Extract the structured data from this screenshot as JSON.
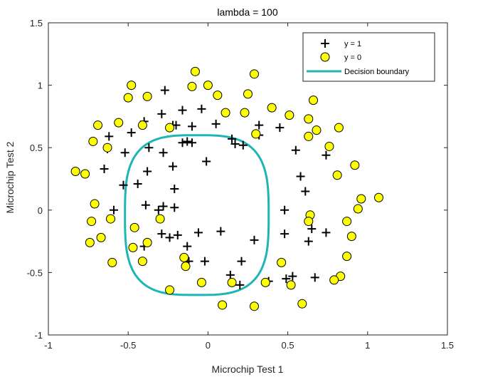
{
  "chart_data": {
    "type": "scatter",
    "title": "lambda = 100",
    "xlabel": "Microchip Test 1",
    "ylabel": "Microchip Test 2",
    "xlim": [
      -1,
      1.5
    ],
    "ylim": [
      -1,
      1.5
    ],
    "xticks": [
      -1,
      -0.5,
      0,
      0.5,
      1,
      1.5
    ],
    "xtick_labels": [
      "-1",
      "-0.5",
      "0",
      "0.5",
      "1",
      "1.5"
    ],
    "yticks": [
      -1,
      -0.5,
      0,
      0.5,
      1,
      1.5
    ],
    "ytick_labels": [
      "-1",
      "-0.5",
      "0",
      "0.5",
      "1",
      "1.5"
    ],
    "grid": false,
    "legend_position": "top-right",
    "series": [
      {
        "name": "y = 1",
        "marker": "plus",
        "color": "#000000",
        "points": [
          [
            -0.27,
            0.96
          ],
          [
            -0.29,
            0.77
          ],
          [
            -0.16,
            0.8
          ],
          [
            -0.04,
            0.81
          ],
          [
            -0.2,
            0.68
          ],
          [
            -0.1,
            0.67
          ],
          [
            -0.4,
            0.71
          ],
          [
            -0.48,
            0.62
          ],
          [
            -0.62,
            0.59
          ],
          [
            -0.52,
            0.46
          ],
          [
            -0.37,
            0.5
          ],
          [
            -0.28,
            0.46
          ],
          [
            -0.22,
            0.35
          ],
          [
            -0.38,
            0.31
          ],
          [
            -0.63,
            0.49
          ],
          [
            -0.65,
            0.33
          ],
          [
            -0.53,
            0.2
          ],
          [
            -0.44,
            0.21
          ],
          [
            -0.21,
            0.17
          ],
          [
            -0.01,
            0.39
          ],
          [
            0.05,
            0.69
          ],
          [
            0.15,
            0.57
          ],
          [
            0.22,
            0.52
          ],
          [
            0.17,
            0.53
          ],
          [
            0.32,
            0.68
          ],
          [
            0.32,
            0.6
          ],
          [
            0.45,
            0.66
          ],
          [
            0.55,
            0.48
          ],
          [
            0.58,
            0.27
          ],
          [
            0.61,
            0.15
          ],
          [
            0.74,
            0.44
          ],
          [
            0.48,
            0.0
          ],
          [
            0.48,
            -0.19
          ],
          [
            0.63,
            -0.25
          ],
          [
            0.65,
            -0.15
          ],
          [
            0.74,
            -0.18
          ],
          [
            0.67,
            -0.54
          ],
          [
            0.53,
            -0.53
          ],
          [
            0.49,
            -0.55
          ],
          [
            0.38,
            -0.57
          ],
          [
            0.29,
            -0.24
          ],
          [
            0.21,
            -0.41
          ],
          [
            0.08,
            -0.17
          ],
          [
            0.14,
            -0.52
          ],
          [
            0.2,
            -0.6
          ],
          [
            -0.06,
            -0.18
          ],
          [
            -0.02,
            -0.41
          ],
          [
            -0.12,
            -0.41
          ],
          [
            -0.13,
            -0.29
          ],
          [
            -0.19,
            -0.2
          ],
          [
            -0.24,
            -0.22
          ],
          [
            -0.29,
            -0.19
          ],
          [
            -0.28,
            0.03
          ],
          [
            -0.21,
            0.02
          ],
          [
            -0.39,
            0.04
          ],
          [
            -0.31,
            0.0
          ],
          [
            -0.4,
            -0.29
          ],
          [
            -0.59,
            0.0
          ],
          [
            -0.1,
            0.54
          ],
          [
            -0.13,
            0.55
          ],
          [
            -0.22,
            0.68
          ],
          [
            -0.16,
            0.54
          ]
        ]
      },
      {
        "name": "y = 0",
        "marker": "circle",
        "color": "#FFFF00",
        "edge_color": "#000000",
        "points": [
          [
            -0.48,
            1.0
          ],
          [
            -0.5,
            0.9
          ],
          [
            -0.38,
            0.91
          ],
          [
            -0.08,
            1.11
          ],
          [
            -0.1,
            0.99
          ],
          [
            0.0,
            1.0
          ],
          [
            0.06,
            0.92
          ],
          [
            0.29,
            1.09
          ],
          [
            0.25,
            0.93
          ],
          [
            0.4,
            0.82
          ],
          [
            0.51,
            0.76
          ],
          [
            0.63,
            0.73
          ],
          [
            0.66,
            0.88
          ],
          [
            0.68,
            0.64
          ],
          [
            0.63,
            0.59
          ],
          [
            0.82,
            0.66
          ],
          [
            0.76,
            0.51
          ],
          [
            0.81,
            0.28
          ],
          [
            0.92,
            0.36
          ],
          [
            0.96,
            0.09
          ],
          [
            1.07,
            0.1
          ],
          [
            0.94,
            0.01
          ],
          [
            0.87,
            -0.09
          ],
          [
            0.9,
            -0.21
          ],
          [
            0.87,
            -0.37
          ],
          [
            0.83,
            -0.53
          ],
          [
            0.79,
            -0.56
          ],
          [
            0.59,
            -0.75
          ],
          [
            0.52,
            -0.6
          ],
          [
            0.46,
            -0.42
          ],
          [
            0.36,
            -0.58
          ],
          [
            0.64,
            -0.04
          ],
          [
            0.63,
            -0.09
          ],
          [
            0.29,
            -0.77
          ],
          [
            0.09,
            -0.76
          ],
          [
            0.15,
            -0.58
          ],
          [
            -0.04,
            -0.58
          ],
          [
            -0.14,
            -0.45
          ],
          [
            -0.15,
            -0.38
          ],
          [
            -0.24,
            -0.64
          ],
          [
            -0.3,
            -0.07
          ],
          [
            -0.41,
            -0.41
          ],
          [
            -0.47,
            -0.3
          ],
          [
            -0.38,
            -0.26
          ],
          [
            -0.46,
            -0.14
          ],
          [
            -0.6,
            -0.42
          ],
          [
            -0.67,
            -0.22
          ],
          [
            -0.74,
            -0.26
          ],
          [
            -0.73,
            -0.09
          ],
          [
            -0.61,
            -0.07
          ],
          [
            -0.71,
            0.05
          ],
          [
            -0.77,
            0.29
          ],
          [
            -0.83,
            0.31
          ],
          [
            -0.72,
            0.55
          ],
          [
            -0.69,
            0.68
          ],
          [
            -0.63,
            0.5
          ],
          [
            -0.56,
            0.7
          ],
          [
            -0.41,
            0.68
          ],
          [
            -0.24,
            0.66
          ],
          [
            0.11,
            0.78
          ],
          [
            0.23,
            0.78
          ],
          [
            0.3,
            0.61
          ]
        ]
      }
    ],
    "boundary": {
      "name": "Decision boundary",
      "color": "#1FB5B5",
      "center": [
        -0.07,
        -0.04
      ],
      "radii": [
        0.45,
        0.64
      ],
      "exponent": 3.2
    }
  }
}
